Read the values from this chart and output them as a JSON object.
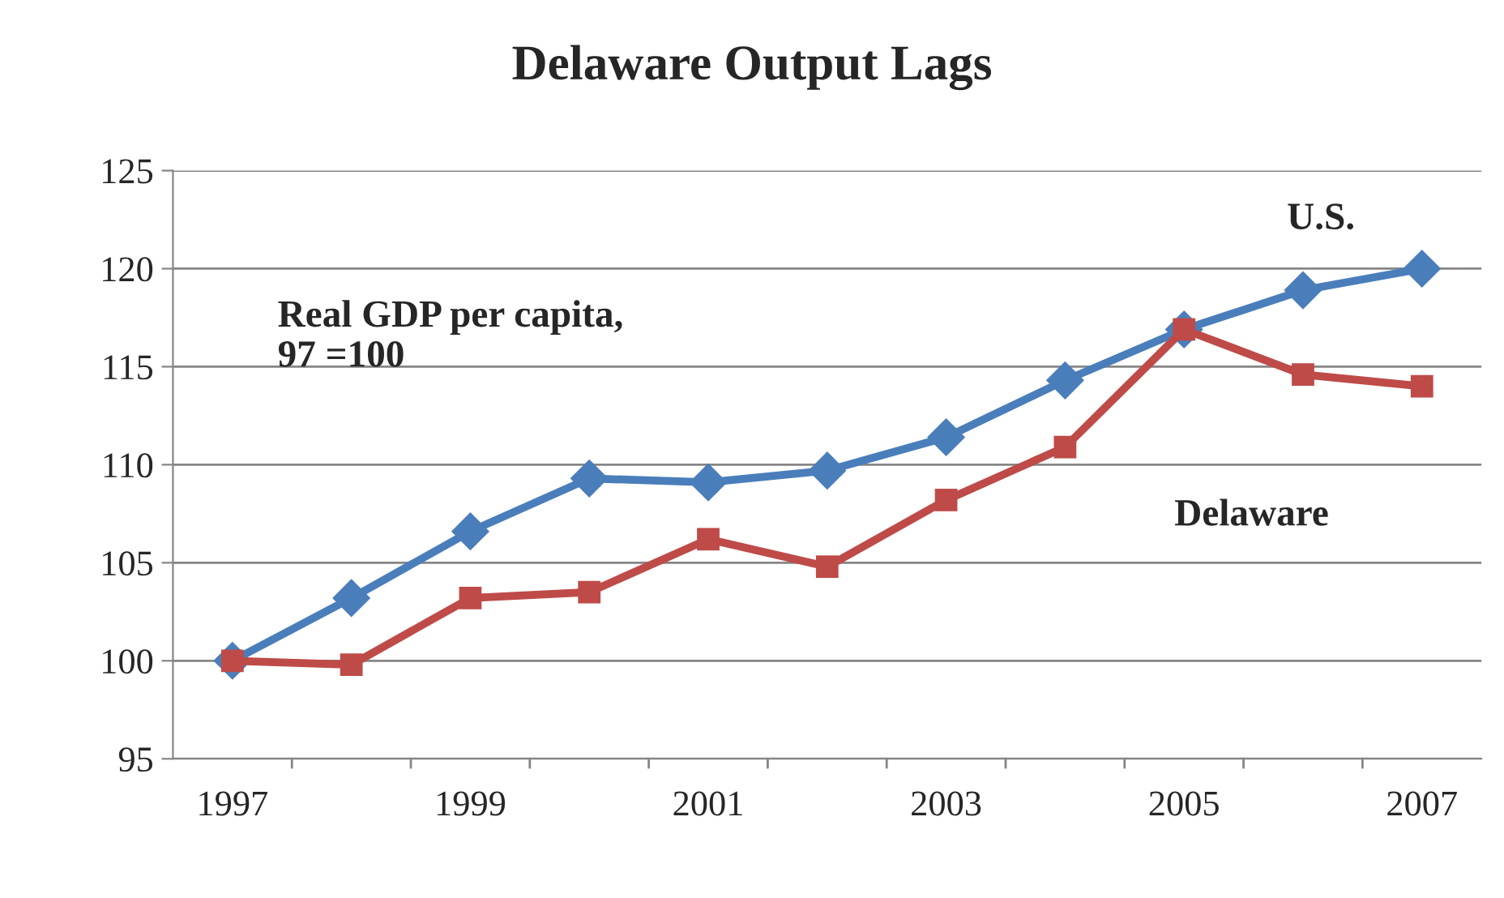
{
  "chart_data": {
    "type": "line",
    "title": "Delaware Output Lags",
    "categories": [
      "1997",
      null,
      "1999",
      null,
      "2001",
      null,
      "2003",
      null,
      "2005",
      null,
      "2007"
    ],
    "series": [
      {
        "name": "U.S.",
        "color": "#4a7ebb",
        "marker": "diamond",
        "values": [
          100,
          103.2,
          106.6,
          109.3,
          109.1,
          109.7,
          111.4,
          114.3,
          116.9,
          118.9,
          120.0
        ]
      },
      {
        "name": "Delaware",
        "color": "#be4b48",
        "marker": "square",
        "values": [
          100,
          99.8,
          103.2,
          103.5,
          106.2,
          104.8,
          108.2,
          110.9,
          116.9,
          114.6,
          114.0
        ]
      }
    ],
    "annotations": [
      "Real GDP per capita,\n97 =100"
    ],
    "ylim": [
      95,
      125
    ],
    "yticks": [
      95,
      100,
      105,
      110,
      115,
      120,
      125
    ],
    "grid": "y",
    "legend": false,
    "line_style": "solid"
  }
}
